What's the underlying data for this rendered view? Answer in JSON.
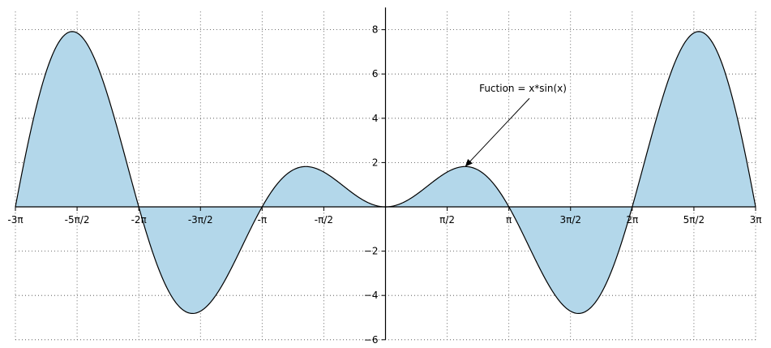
{
  "chart_data": {
    "type": "area",
    "function": "x*sin(x)",
    "xlim": [
      -9.42478,
      9.42478
    ],
    "ylim": [
      -6,
      9
    ],
    "grid": true,
    "fill_color": "#b3d7ea",
    "line_color": "#000000",
    "x_ticks": [
      {
        "value": -9.42478,
        "label": "-3π"
      },
      {
        "value": -7.85398,
        "label": "-5π/2"
      },
      {
        "value": -6.28319,
        "label": "-2π"
      },
      {
        "value": -4.71239,
        "label": "-3π/2"
      },
      {
        "value": -3.14159,
        "label": "-π"
      },
      {
        "value": -1.5708,
        "label": "-π/2"
      },
      {
        "value": 1.5708,
        "label": "π/2"
      },
      {
        "value": 3.14159,
        "label": "π"
      },
      {
        "value": 4.71239,
        "label": "3π/2"
      },
      {
        "value": 6.28319,
        "label": "2π"
      },
      {
        "value": 7.85398,
        "label": "5π/2"
      },
      {
        "value": 9.42478,
        "label": "3π"
      }
    ],
    "y_ticks": [
      {
        "value": -6,
        "label": "−6"
      },
      {
        "value": -4,
        "label": "−4"
      },
      {
        "value": -2,
        "label": "−2"
      },
      {
        "value": 2,
        "label": "2"
      },
      {
        "value": 4,
        "label": "4"
      },
      {
        "value": 6,
        "label": "6"
      },
      {
        "value": 8,
        "label": "8"
      }
    ],
    "annotation": {
      "text": "Fuction = x*sin(x)",
      "point": [
        2.03,
        1.82
      ],
      "text_pos": [
        3.5,
        4.9
      ]
    }
  }
}
